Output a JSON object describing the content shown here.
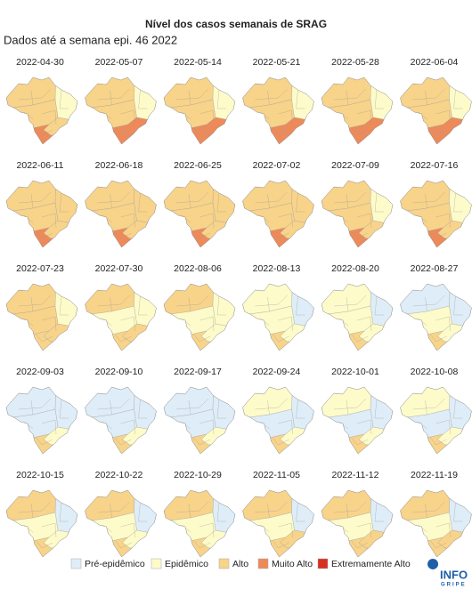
{
  "title": "Nível dos casos semanais de SRAG",
  "subtitle": "Dados até a semana epi. 46 2022",
  "legend": [
    {
      "label": "Pré-epidêmico",
      "color": "#deedf7"
    },
    {
      "label": "Epidêmico",
      "color": "#fdfbc9"
    },
    {
      "label": "Alto",
      "color": "#f8d38a"
    },
    {
      "label": "Muito Alto",
      "color": "#ee8a59"
    },
    {
      "label": "Extremamente Alto",
      "color": "#d7301f"
    }
  ],
  "logo": {
    "line1": "INFO",
    "line2": "GRIPE"
  },
  "maps": [
    {
      "date": "2022-04-30",
      "fills": [
        "#f8d38a",
        "#fdfbc9",
        "#f8d38a",
        "#f8d38a",
        "#ee8a59"
      ]
    },
    {
      "date": "2022-05-07",
      "fills": [
        "#f8d38a",
        "#fdfbc9",
        "#f8d38a",
        "#ee8a59",
        "#ee8a59"
      ]
    },
    {
      "date": "2022-05-14",
      "fills": [
        "#f8d38a",
        "#fdfbc9",
        "#f8d38a",
        "#ee8a59",
        "#ee8a59"
      ]
    },
    {
      "date": "2022-05-21",
      "fills": [
        "#f8d38a",
        "#fdfbc9",
        "#f8d38a",
        "#ee8a59",
        "#ee8a59"
      ]
    },
    {
      "date": "2022-05-28",
      "fills": [
        "#f8d38a",
        "#fdfbc9",
        "#f8d38a",
        "#ee8a59",
        "#ee8a59"
      ]
    },
    {
      "date": "2022-06-04",
      "fills": [
        "#f8d38a",
        "#fdfbc9",
        "#f8d38a",
        "#ee8a59",
        "#ee8a59"
      ]
    },
    {
      "date": "2022-06-11",
      "fills": [
        "#f8d38a",
        "#f8d38a",
        "#f8d38a",
        "#f8d38a",
        "#ee8a59"
      ]
    },
    {
      "date": "2022-06-18",
      "fills": [
        "#f8d38a",
        "#f8d38a",
        "#f8d38a",
        "#f8d38a",
        "#ee8a59"
      ]
    },
    {
      "date": "2022-06-25",
      "fills": [
        "#f8d38a",
        "#f8d38a",
        "#f8d38a",
        "#f8d38a",
        "#ee8a59"
      ]
    },
    {
      "date": "2022-07-02",
      "fills": [
        "#f8d38a",
        "#f8d38a",
        "#f8d38a",
        "#f8d38a",
        "#ee8a59"
      ]
    },
    {
      "date": "2022-07-09",
      "fills": [
        "#f8d38a",
        "#fdfbc9",
        "#f8d38a",
        "#f8d38a",
        "#ee8a59"
      ]
    },
    {
      "date": "2022-07-16",
      "fills": [
        "#f8d38a",
        "#fdfbc9",
        "#f8d38a",
        "#f8d38a",
        "#ee8a59"
      ]
    },
    {
      "date": "2022-07-23",
      "fills": [
        "#f8d38a",
        "#fdfbc9",
        "#f8d38a",
        "#f8d38a",
        "#f8d38a"
      ]
    },
    {
      "date": "2022-07-30",
      "fills": [
        "#f8d38a",
        "#fdfbc9",
        "#fdfbc9",
        "#f8d38a",
        "#f8d38a"
      ]
    },
    {
      "date": "2022-08-06",
      "fills": [
        "#f8d38a",
        "#fdfbc9",
        "#fdfbc9",
        "#fdfbc9",
        "#f8d38a"
      ]
    },
    {
      "date": "2022-08-13",
      "fills": [
        "#fdfbc9",
        "#deedf7",
        "#fdfbc9",
        "#fdfbc9",
        "#f8d38a"
      ]
    },
    {
      "date": "2022-08-20",
      "fills": [
        "#fdfbc9",
        "#deedf7",
        "#fdfbc9",
        "#fdfbc9",
        "#f8d38a"
      ]
    },
    {
      "date": "2022-08-27",
      "fills": [
        "#deedf7",
        "#deedf7",
        "#fdfbc9",
        "#fdfbc9",
        "#f8d38a"
      ]
    },
    {
      "date": "2022-09-03",
      "fills": [
        "#deedf7",
        "#deedf7",
        "#deedf7",
        "#fdfbc9",
        "#f8d38a"
      ]
    },
    {
      "date": "2022-09-10",
      "fills": [
        "#deedf7",
        "#deedf7",
        "#deedf7",
        "#fdfbc9",
        "#f8d38a"
      ]
    },
    {
      "date": "2022-09-17",
      "fills": [
        "#deedf7",
        "#deedf7",
        "#deedf7",
        "#fdfbc9",
        "#f8d38a"
      ]
    },
    {
      "date": "2022-09-24",
      "fills": [
        "#fdfbc9",
        "#deedf7",
        "#deedf7",
        "#fdfbc9",
        "#f8d38a"
      ]
    },
    {
      "date": "2022-10-01",
      "fills": [
        "#fdfbc9",
        "#deedf7",
        "#deedf7",
        "#fdfbc9",
        "#f8d38a"
      ]
    },
    {
      "date": "2022-10-08",
      "fills": [
        "#fdfbc9",
        "#deedf7",
        "#deedf7",
        "#fdfbc9",
        "#f8d38a"
      ]
    },
    {
      "date": "2022-10-15",
      "fills": [
        "#f8d38a",
        "#deedf7",
        "#fdfbc9",
        "#fdfbc9",
        "#f8d38a"
      ]
    },
    {
      "date": "2022-10-22",
      "fills": [
        "#f8d38a",
        "#deedf7",
        "#fdfbc9",
        "#fdfbc9",
        "#f8d38a"
      ]
    },
    {
      "date": "2022-10-29",
      "fills": [
        "#f8d38a",
        "#deedf7",
        "#fdfbc9",
        "#fdfbc9",
        "#f8d38a"
      ]
    },
    {
      "date": "2022-11-05",
      "fills": [
        "#f8d38a",
        "#deedf7",
        "#fdfbc9",
        "#f8d38a",
        "#f8d38a"
      ]
    },
    {
      "date": "2022-11-12",
      "fills": [
        "#f8d38a",
        "#deedf7",
        "#fdfbc9",
        "#f8d38a",
        "#f8d38a"
      ]
    },
    {
      "date": "2022-11-19",
      "fills": [
        "#f8d38a",
        "#deedf7",
        "#fdfbc9",
        "#f8d38a",
        "#f8d38a"
      ]
    }
  ]
}
